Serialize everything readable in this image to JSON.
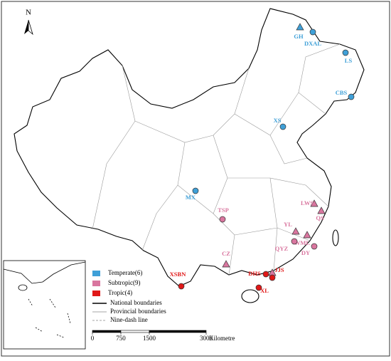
{
  "north": "N",
  "zones": [
    {
      "label": "Temperate(6)",
      "color": "#3fa0d8",
      "sites": [
        "GH",
        "DXAL",
        "LS",
        "CBS",
        "XS",
        "MX"
      ]
    },
    {
      "label": "Subtropic(9)",
      "color": "#d9769f",
      "sites": [
        "TSP",
        "LWS",
        "QS",
        "YL",
        "WML",
        "QYZ",
        "DY",
        "CZ",
        "DHS"
      ]
    },
    {
      "label": "Tropic(4)",
      "color": "#e01818",
      "sites": [
        "XSBN",
        "JJS",
        "XL",
        "DHS"
      ]
    }
  ],
  "lines": [
    "National boundaries",
    "Provincial boundaries",
    "Nine-dash line"
  ],
  "scale": {
    "ticks": [
      0,
      750,
      1500,
      3000
    ],
    "unit": "Kilometre"
  }
}
